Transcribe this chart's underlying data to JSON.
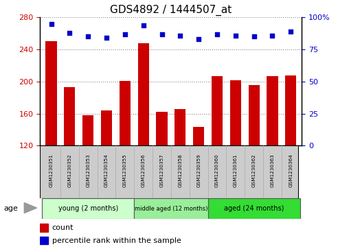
{
  "title": "GDS4892 / 1444507_at",
  "samples": [
    "GSM1230351",
    "GSM1230352",
    "GSM1230353",
    "GSM1230354",
    "GSM1230355",
    "GSM1230356",
    "GSM1230357",
    "GSM1230358",
    "GSM1230359",
    "GSM1230360",
    "GSM1230361",
    "GSM1230362",
    "GSM1230363",
    "GSM1230364"
  ],
  "counts": [
    250,
    193,
    158,
    164,
    201,
    248,
    162,
    166,
    143,
    207,
    202,
    196,
    207,
    208
  ],
  "percentiles": [
    95,
    88,
    85,
    84,
    87,
    94,
    87,
    86,
    83,
    87,
    86,
    85,
    86,
    89
  ],
  "ylim_left": [
    120,
    280
  ],
  "ylim_right": [
    0,
    100
  ],
  "yticks_left": [
    120,
    160,
    200,
    240,
    280
  ],
  "yticks_right": [
    0,
    25,
    50,
    75,
    100
  ],
  "groups": [
    {
      "label": "young (2 months)",
      "start": 0,
      "end": 5,
      "color": "#CCFFCC"
    },
    {
      "label": "middle aged (12 months)",
      "start": 5,
      "end": 9,
      "color": "#88EE88"
    },
    {
      "label": "aged (24 months)",
      "start": 9,
      "end": 14,
      "color": "#44DD44"
    }
  ],
  "bar_color": "#CC0000",
  "dot_color": "#0000CC",
  "sample_box_color": "#CCCCCC",
  "plot_bg": "#FFFFFF",
  "fig_bg": "#FFFFFF",
  "title_fontsize": 11,
  "axis_label_color_left": "#CC0000",
  "axis_label_color_right": "#0000CC",
  "grid_color": "#888888"
}
